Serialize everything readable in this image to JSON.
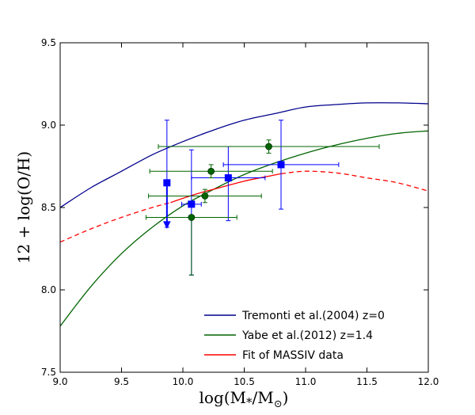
{
  "chart_data": {
    "type": "scatter",
    "title": "",
    "xlabel": "log(M*/M⊙)",
    "ylabel": "12 + log(O/H)",
    "xlim": [
      9.0,
      12.0
    ],
    "ylim": [
      7.5,
      9.5
    ],
    "x_ticks": [
      "9.0",
      "9.5",
      "10.0",
      "10.5",
      "11.0",
      "11.5",
      "12.0"
    ],
    "y_ticks": [
      "7.5",
      "8.0",
      "8.5",
      "9.0",
      "9.5"
    ],
    "legend_position": "bottom-right",
    "curves": [
      {
        "name": "Tremonti et al.(2004) z=0",
        "color": "#00008b",
        "style": "solid",
        "x": [
          9.0,
          9.25,
          9.5,
          9.75,
          10.0,
          10.25,
          10.5,
          10.75,
          11.0,
          11.25,
          11.5,
          11.75,
          12.0
        ],
        "y": [
          8.5,
          8.62,
          8.72,
          8.82,
          8.9,
          8.97,
          9.03,
          9.07,
          9.11,
          9.125,
          9.135,
          9.135,
          9.13
        ]
      },
      {
        "name": "Yabe et al.(2012) z=1.4",
        "color": "#006400",
        "style": "solid",
        "x": [
          9.0,
          9.25,
          9.5,
          9.75,
          10.0,
          10.25,
          10.5,
          10.75,
          11.0,
          11.25,
          11.5,
          11.75,
          12.0
        ],
        "y": [
          7.78,
          8.02,
          8.22,
          8.38,
          8.51,
          8.61,
          8.7,
          8.77,
          8.83,
          8.88,
          8.92,
          8.95,
          8.965
        ]
      },
      {
        "name": "Fit of MASSIV data",
        "color": "#ff0000",
        "segments": [
          {
            "style": "dashed",
            "x": [
              9.0,
              9.25,
              9.5,
              9.75,
              9.9
            ],
            "y": [
              8.29,
              8.37,
              8.44,
              8.5,
              8.53
            ]
          },
          {
            "style": "solid",
            "x": [
              9.9,
              10.1,
              10.3,
              10.5,
              10.7,
              10.8
            ],
            "y": [
              8.53,
              8.58,
              8.62,
              8.66,
              8.69,
              8.705
            ]
          },
          {
            "style": "dashed",
            "x": [
              10.8,
              11.0,
              11.25,
              11.5,
              11.75,
              12.0
            ],
            "y": [
              8.705,
              8.72,
              8.71,
              8.68,
              8.65,
              8.6
            ]
          }
        ]
      }
    ],
    "points": [
      {
        "series": "MASSIV",
        "marker": "square",
        "color": "#0000ff",
        "x": 9.87,
        "y": 8.65,
        "xerr": 0.0,
        "yerr_lo": 0.27,
        "yerr_hi": 0.38,
        "upper_limit": true
      },
      {
        "series": "MASSIV",
        "marker": "square",
        "color": "#0000ff",
        "x": 10.07,
        "y": 8.52,
        "xerr": 0.08,
        "yerr_lo": 0.43,
        "yerr_hi": 0.33,
        "upper_limit": false
      },
      {
        "series": "MASSIV",
        "marker": "square",
        "color": "#0000ff",
        "x": 10.37,
        "y": 8.68,
        "xerr": 0.3,
        "yerr_lo": 0.26,
        "yerr_hi": 0.19,
        "upper_limit": false
      },
      {
        "series": "MASSIV",
        "marker": "square",
        "color": "#0000ff",
        "x": 10.8,
        "y": 8.76,
        "xerr": 0.47,
        "yerr_lo": 0.27,
        "yerr_hi": 0.27,
        "upper_limit": false
      },
      {
        "series": "Yabe",
        "marker": "circle",
        "color": "#006400",
        "x": 10.07,
        "y": 8.44,
        "xerr": 0.37,
        "yerr_lo": 0.35,
        "yerr_hi": 0.0,
        "upper_limit": false
      },
      {
        "series": "Yabe",
        "marker": "circle",
        "color": "#006400",
        "x": 10.18,
        "y": 8.57,
        "xerr": 0.46,
        "yerr_lo": 0.04,
        "yerr_hi": 0.04,
        "upper_limit": false
      },
      {
        "series": "Yabe",
        "marker": "circle",
        "color": "#006400",
        "x": 10.23,
        "y": 8.72,
        "xerr": 0.5,
        "yerr_lo": 0.04,
        "yerr_hi": 0.04,
        "upper_limit": false
      },
      {
        "series": "Yabe",
        "marker": "circle",
        "color": "#006400",
        "x": 10.7,
        "y": 8.87,
        "xerr": 0.9,
        "yerr_lo": 0.04,
        "yerr_hi": 0.04,
        "upper_limit": false
      }
    ]
  }
}
